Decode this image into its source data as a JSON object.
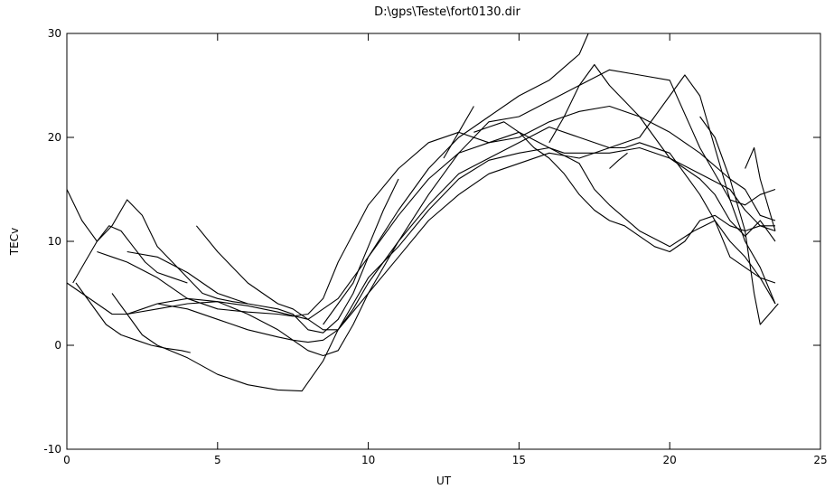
{
  "chart_data": {
    "type": "line",
    "title": "D:\\gps\\Teste\\fort0130.dir",
    "xlabel": "UT",
    "ylabel": "TECv",
    "xlim": [
      0,
      25
    ],
    "ylim": [
      -10,
      30
    ],
    "xticks": [
      0,
      5,
      10,
      15,
      20,
      25
    ],
    "yticks": [
      -10,
      0,
      10,
      20,
      30
    ],
    "grid": false,
    "legend": "none",
    "line_color": "#000000",
    "series": [
      {
        "x": [
          0.0,
          0.5,
          1.0,
          1.5,
          2.0,
          2.5,
          3.0,
          4.0,
          5.0,
          6.0,
          7.0,
          8.0,
          9.0,
          10.0,
          11.0,
          12.0,
          13.0,
          14.0,
          15.0,
          16.0,
          17.0,
          17.3
        ],
        "y": [
          6,
          5,
          4,
          3,
          3,
          3.5,
          4,
          4.5,
          4.2,
          3.8,
          3.2,
          2.5,
          4.5,
          8.5,
          13,
          17,
          20,
          22,
          24,
          25.5,
          28,
          30
        ]
      },
      {
        "x": [
          1.5,
          2.0,
          2.5,
          3.0,
          4.0,
          5.0,
          6.0,
          7.0,
          7.8,
          8.5,
          9.0,
          9.5,
          10.0,
          11.0,
          12.0,
          13.0,
          14.0,
          15.0,
          16.0,
          17.0,
          17.5,
          18.0,
          19.0,
          20.0,
          20.8,
          21.5,
          22.0,
          22.5,
          23.0,
          23.5
        ],
        "y": [
          5,
          3,
          1,
          0,
          -1.2,
          -2.8,
          -3.8,
          -4.3,
          -4.4,
          -1.5,
          1.5,
          4,
          6.5,
          9.5,
          13,
          16,
          17.8,
          18.5,
          19,
          17.5,
          15,
          13.5,
          11,
          9.5,
          11,
          12,
          8.5,
          7.5,
          6.5,
          6
        ]
      },
      {
        "x": [
          0.3,
          0.8,
          1.3,
          1.8,
          2.3,
          2.8,
          3.3,
          3.8,
          4.1
        ],
        "y": [
          6,
          4,
          2,
          1,
          0.5,
          0,
          -0.3,
          -0.5,
          -0.7
        ]
      },
      {
        "x": [
          0.2,
          0.6,
          1.0,
          1.4,
          1.8,
          2.2,
          2.6,
          3.0,
          3.5,
          4.0
        ],
        "y": [
          6,
          8,
          10,
          11.5,
          11,
          9.5,
          8,
          7,
          6.5,
          6
        ]
      },
      {
        "x": [
          0.0,
          0.5,
          1.0,
          1.5,
          2.0,
          2.5,
          3.0,
          3.5,
          4.0,
          4.5,
          5.0,
          5.5,
          6.0
        ],
        "y": [
          15,
          12,
          10,
          11.5,
          14,
          12.5,
          9.5,
          8,
          6.5,
          5,
          4.5,
          4.2,
          4
        ]
      },
      {
        "x": [
          4.3,
          5.0,
          5.5,
          6.0,
          6.5,
          7.0,
          7.5,
          8.0,
          8.5,
          9.0,
          10.0,
          11.0,
          12.0,
          13.0,
          14.0,
          15.0,
          16.0,
          17.0,
          18.0,
          19.0,
          20.0,
          21.0,
          22.0,
          22.5,
          23.0,
          23.5
        ],
        "y": [
          11.5,
          9,
          7.5,
          6,
          5,
          4,
          3.5,
          2.5,
          1.5,
          1.5,
          5,
          10,
          14.5,
          18.5,
          21.5,
          22,
          23.5,
          25,
          26.5,
          26,
          25.5,
          19,
          14,
          13.5,
          14.5,
          15
        ]
      },
      {
        "x": [
          1.0,
          2.0,
          3.0,
          4.0,
          5.0,
          6.0,
          7.0,
          7.5,
          8.0,
          8.5,
          9.0,
          10.0,
          11.0,
          12.0,
          13.0,
          14.0,
          15.0,
          16.0,
          17.0,
          18.0,
          19.0,
          20.0,
          21.0,
          22.0,
          22.5,
          23.0,
          23.5
        ],
        "y": [
          9,
          8,
          6.5,
          4.5,
          3.5,
          3.2,
          3,
          2.8,
          3,
          4.5,
          8,
          13.5,
          17,
          19.5,
          20.5,
          19.5,
          20,
          21.5,
          22.5,
          23,
          22,
          20.5,
          18.5,
          16,
          15,
          12.5,
          12
        ]
      },
      {
        "x": [
          2.0,
          3.0,
          4.0,
          5.0,
          6.0,
          7.0,
          7.5,
          8.0,
          8.5,
          9.0,
          9.5,
          10.0,
          11.0,
          12.0,
          13.0,
          14.0,
          15.0,
          16.0,
          16.5,
          17.0,
          18.0,
          19.0,
          20.0,
          21.0,
          22.0,
          22.5,
          23.0,
          23.5
        ],
        "y": [
          9,
          8.5,
          7,
          5,
          4,
          3.5,
          3,
          1.5,
          1.2,
          2.5,
          5,
          8.5,
          12.5,
          16,
          18.5,
          19.5,
          20.5,
          19,
          18.5,
          18.5,
          18.5,
          19,
          18,
          16.5,
          15,
          13,
          11.5,
          11
        ]
      },
      {
        "x": [
          3.0,
          4.0,
          5.0,
          6.0,
          7.0,
          7.5,
          8.0,
          8.5,
          9.0,
          9.5,
          10.0,
          11.0,
          12.0,
          13.0,
          14.0,
          15.0,
          16.0,
          17.0,
          18.0,
          18.5,
          19.0,
          20.0,
          21.0,
          21.5,
          22.0,
          22.5,
          23.0,
          23.5
        ],
        "y": [
          4,
          3.5,
          2.5,
          1.5,
          0.8,
          0.5,
          0.3,
          0.5,
          1.5,
          3.5,
          6,
          10,
          13.5,
          16.5,
          18,
          19.5,
          21,
          20,
          19,
          19,
          19.5,
          18.5,
          14.5,
          12,
          10,
          8.5,
          6.5,
          4
        ]
      },
      {
        "x": [
          2.0,
          3.0,
          4.0,
          5.0,
          6.0,
          7.0,
          8.0,
          8.5,
          9.0,
          9.5,
          10.0,
          11.0,
          12.0,
          13.0,
          14.0,
          15.0,
          16.0,
          17.0,
          18.0,
          19.0,
          19.5,
          20.0,
          20.5,
          21.0,
          21.5,
          22.0,
          22.5,
          23.0,
          23.5
        ],
        "y": [
          3,
          3.5,
          4,
          4.2,
          3,
          1.5,
          -0.5,
          -1,
          -0.5,
          2,
          5,
          8.5,
          12,
          14.5,
          16.5,
          17.5,
          18.5,
          18,
          19,
          20,
          22,
          24,
          26,
          24,
          19,
          14,
          10,
          7.5,
          4
        ]
      },
      {
        "x": [
          16.0,
          16.5,
          17.0,
          17.5,
          18.0,
          18.5,
          19.0,
          19.5,
          20.0,
          20.5,
          21.0,
          21.5,
          22.0,
          22.5,
          23.0,
          23.5
        ],
        "y": [
          19.5,
          22,
          25,
          27,
          25,
          23.5,
          22,
          20,
          18,
          17,
          16,
          14.5,
          12,
          10.5,
          12,
          10
        ]
      },
      {
        "x": [
          13.5,
          14.0,
          14.5,
          15.0,
          15.5,
          16.0,
          16.5,
          17.0,
          17.5,
          18.0,
          18.5,
          19.0,
          19.5,
          20.0,
          20.5,
          21.0,
          21.5,
          22.0,
          22.5,
          23.0,
          23.5
        ],
        "y": [
          20.5,
          21,
          21.5,
          20.5,
          19,
          18,
          16.5,
          14.5,
          13,
          12,
          11.5,
          10.5,
          9.5,
          9,
          10,
          12,
          12.5,
          11.5,
          11,
          11.5,
          11.5
        ]
      },
      {
        "x": [
          8.5,
          9.0,
          9.5,
          10.0,
          10.5,
          11.0
        ],
        "y": [
          2,
          4,
          6,
          9.5,
          13,
          16
        ]
      },
      {
        "x": [
          12.5,
          13.0,
          13.5
        ],
        "y": [
          18,
          20.5,
          23
        ]
      },
      {
        "x": [
          21.0,
          21.5,
          22.0,
          22.5,
          22.8,
          23.0,
          23.3,
          23.6
        ],
        "y": [
          22,
          20,
          16,
          11,
          5,
          2,
          3,
          4
        ]
      },
      {
        "x": [
          22.5,
          22.8,
          23.0,
          23.3,
          23.5
        ],
        "y": [
          17,
          19,
          16,
          13,
          11
        ]
      },
      {
        "x": [
          18.0,
          18.3,
          18.6
        ],
        "y": [
          17,
          17.8,
          18.5
        ]
      }
    ]
  }
}
